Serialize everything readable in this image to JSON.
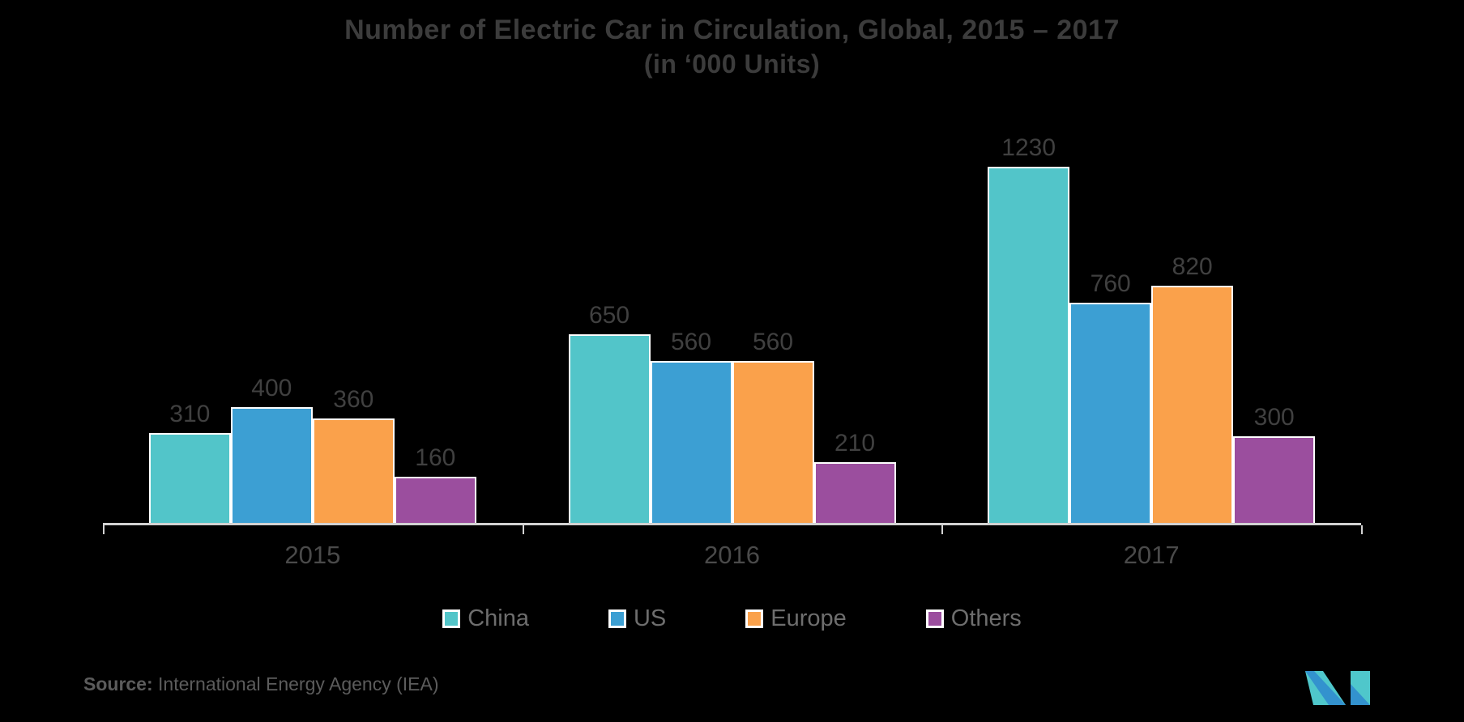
{
  "title": {
    "line1": "Number of Electric Car in Circulation, Global, 2015 – 2017",
    "line2": "(in ‘000 Units)"
  },
  "chart_data": {
    "type": "bar",
    "title": "Number of Electric Car in Circulation, Global, 2015 – 2017",
    "subtitle": "(in ‘000 Units)",
    "categories": [
      "2015",
      "2016",
      "2017"
    ],
    "series": [
      {
        "name": "China",
        "color": "#52C5C9",
        "values": [
          310,
          650,
          1230
        ]
      },
      {
        "name": "US",
        "color": "#3C9FD3",
        "values": [
          400,
          560,
          760
        ]
      },
      {
        "name": "Europe",
        "color": "#FAA14B",
        "values": [
          360,
          560,
          820
        ]
      },
      {
        "name": "Others",
        "color": "#9B4E9E",
        "values": [
          160,
          210,
          300
        ]
      }
    ],
    "ylim": [
      0,
      1230
    ],
    "value_labels": true,
    "grid": false,
    "legend_position": "bottom"
  },
  "legend": [
    {
      "label": "China",
      "color": "#52C5C9"
    },
    {
      "label": "US",
      "color": "#3C9FD3"
    },
    {
      "label": "Europe",
      "color": "#FAA14B"
    },
    {
      "label": "Others",
      "color": "#9B4E9E"
    }
  ],
  "source": {
    "label": "Source:",
    "text": " International Energy Agency (IEA)"
  },
  "logo": {
    "name": "mordor-intelligence-logo",
    "teal": "#4FC7CB",
    "blue": "#3392CE"
  },
  "colors": {
    "background": "#000000",
    "axis": "#D2D2D2",
    "bar_border": "#FFFFFF",
    "title_text": "#3C3C3C",
    "value_text": "#404040",
    "category_text": "#4A4A4A",
    "legend_text": "#6E6E6E",
    "source_text": "#5C5C5C"
  }
}
